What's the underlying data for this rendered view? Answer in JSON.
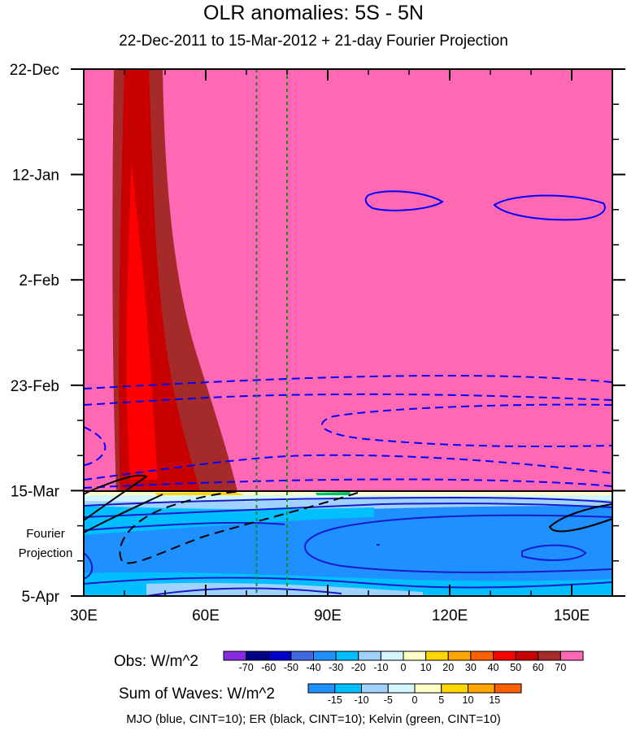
{
  "title": "OLR anomalies: 5S - 5N",
  "subtitle": "22-Dec-2011 to 15-Mar-2012 + 21-day Fourier Projection",
  "chart_data": {
    "type": "heatmap",
    "x_axis": {
      "range": [
        30,
        160
      ],
      "ticks": [
        30,
        60,
        90,
        120,
        150
      ],
      "tick_labels": [
        "30E",
        "60E",
        "90E",
        "120E",
        "150E"
      ]
    },
    "y_axis": {
      "range_days": [
        0,
        105
      ],
      "ticks_days": [
        0,
        21,
        42,
        63,
        84,
        105
      ],
      "tick_labels": [
        "22-Dec",
        "12-Jan",
        "2-Feb",
        "23-Feb",
        "15-Mar",
        "5-Apr"
      ],
      "projection_label": [
        "Fourier",
        "Projection"
      ]
    },
    "observed_period_end_day": 84,
    "reference_longitudes": [
      72.5,
      80
    ],
    "obs_colorbar": {
      "label": "Obs: W/m^2",
      "levels": [
        -70,
        -60,
        -50,
        -40,
        -30,
        -20,
        -10,
        0,
        10,
        20,
        30,
        40,
        50,
        60,
        70
      ],
      "colors": [
        "#8a2be2",
        "#00008b",
        "#0000cd",
        "#4169e1",
        "#1e90ff",
        "#00bfff",
        "#a0d2ff",
        "#d2f5ff",
        "#ffffc8",
        "#ffd700",
        "#ffa500",
        "#ff6000",
        "#ff0000",
        "#c80000",
        "#a52a2a",
        "#ff69b4"
      ]
    },
    "sum_colorbar": {
      "label": "Sum of Waves: W/m^2",
      "levels": [
        -15,
        -10,
        -5,
        0,
        5,
        10,
        15
      ],
      "colors": [
        "#1e90ff",
        "#00bfff",
        "#a0d2ff",
        "#d2f5ff",
        "#ffffc8",
        "#ffd700",
        "#ffa500",
        "#ff6000"
      ]
    },
    "legend_note": "MJO (blue, CINT=10); ER (black, CINT=10); Kelvin (green, CINT=10)"
  }
}
